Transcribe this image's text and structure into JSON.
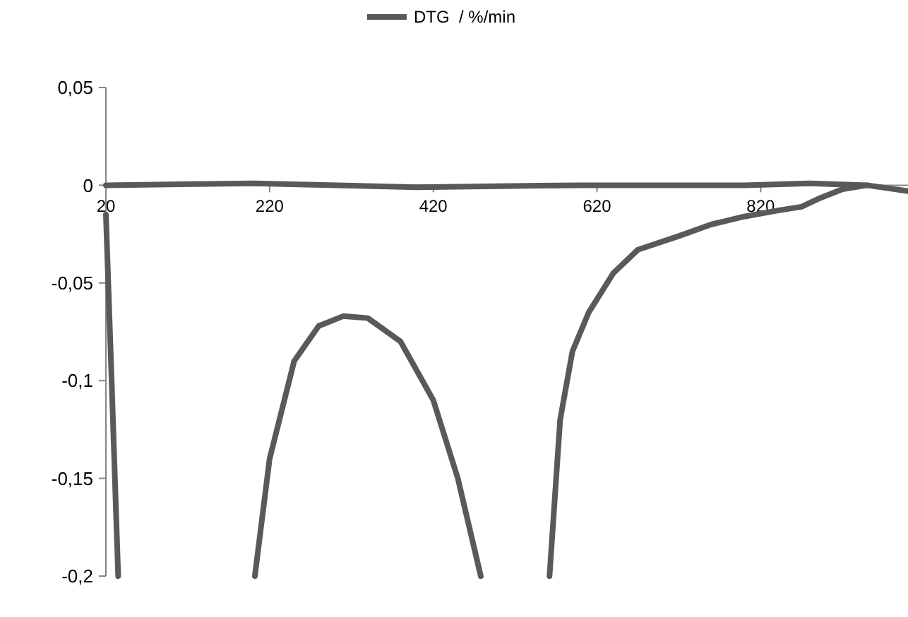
{
  "chart_data": {
    "type": "line",
    "legend": "top",
    "grid": false,
    "line_style": "solid",
    "xlim": [
      20,
      1000
    ],
    "xticks": [
      20,
      220,
      420,
      620,
      820
    ],
    "ylim": [
      -0.2,
      0.05
    ],
    "yticks": [
      {
        "value": 0.05,
        "label": "0,05"
      },
      0,
      {
        "value": -0.05,
        "label": "-0,05"
      },
      {
        "value": -0.1,
        "label": "-0,1"
      },
      {
        "value": -0.15,
        "label": "-0,15"
      },
      {
        "value": -0.2,
        "label": "-0,2"
      }
    ],
    "series": [
      {
        "name": "DTG  / %/min",
        "color": "#595959",
        "x": [
          20,
          27,
          35,
          202,
          220,
          250,
          280,
          310,
          340,
          380,
          420,
          450,
          478,
          562,
          575,
          590,
          610,
          640,
          670,
          720,
          760,
          800,
          840,
          870,
          890,
          920,
          950,
          1000
        ],
        "values": [
          -0.015,
          -0.1,
          -0.2,
          -0.2,
          -0.14,
          -0.09,
          -0.072,
          -0.067,
          -0.068,
          -0.08,
          -0.11,
          -0.15,
          -0.2,
          -0.2,
          -0.12,
          -0.085,
          -0.065,
          -0.045,
          -0.033,
          -0.026,
          -0.02,
          -0.016,
          -0.013,
          -0.011,
          -0.007,
          -0.002,
          0,
          -0.003
        ]
      },
      {
        "color": "#595959",
        "x": [
          20,
          200,
          400,
          600,
          800,
          880,
          950
        ],
        "values": [
          0,
          0.001,
          -0.001,
          0,
          0,
          0.001,
          0
        ]
      }
    ]
  }
}
